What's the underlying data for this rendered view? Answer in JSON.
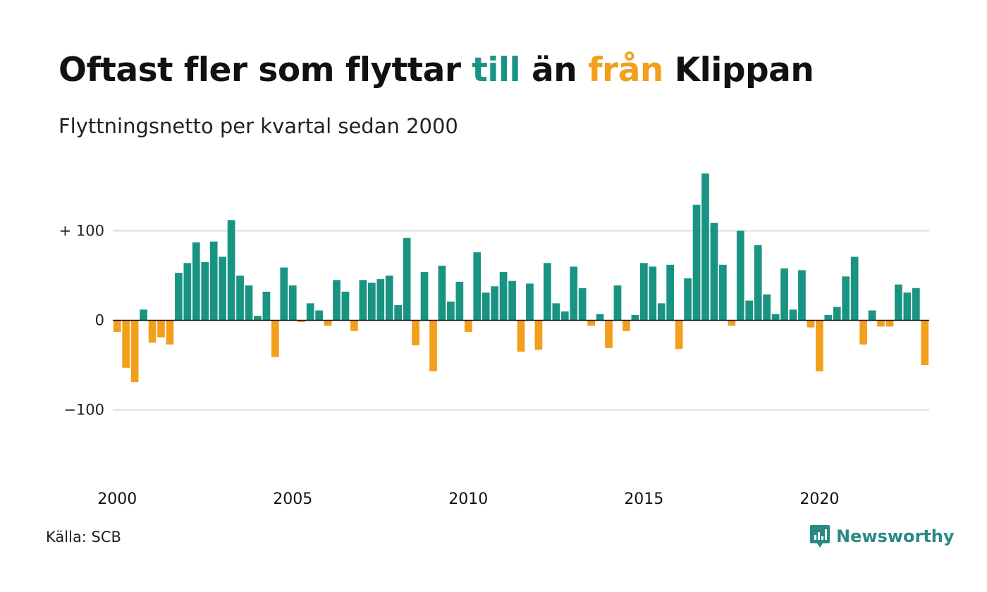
{
  "title": {
    "part1": "Oftast fler som flyttar ",
    "part2": "till",
    "part3": " än ",
    "part4": "från",
    "part5": " Klippan"
  },
  "subtitle": "Flyttningsnetto per kvartal sedan 2000",
  "source": "Källa: SCB",
  "brand": {
    "name": "Newsworthy",
    "icon": "newsworthy-logo-icon"
  },
  "colors": {
    "positive": "#1a9482",
    "negative": "#f29f1c",
    "accent_text_till": "#1a9482",
    "accent_text_fran": "#f29f1c",
    "grid": "#dddddd",
    "brand": "#2a8a82"
  },
  "chart_data": {
    "type": "bar",
    "title": "Oftast fler som flyttar till än från Klippan",
    "subtitle": "Flyttningsnetto per kvartal sedan 2000",
    "xlabel": "",
    "ylabel": "",
    "ylim": [
      -175,
      165
    ],
    "yticks": [
      {
        "value": 100,
        "label": "+ 100"
      },
      {
        "value": 0,
        "label": "0"
      },
      {
        "value": -100,
        "label": "−100"
      }
    ],
    "xticks": [
      "2000",
      "2005",
      "2010",
      "2015",
      "2020"
    ],
    "start_year": 2000,
    "frequency": "quarterly",
    "grid": true,
    "legend": "none",
    "values": [
      -13,
      -53,
      -69,
      12,
      -25,
      -19,
      -27,
      53,
      64,
      87,
      65,
      88,
      71,
      112,
      50,
      39,
      5,
      32,
      -41,
      59,
      39,
      -2,
      19,
      11,
      -6,
      45,
      32,
      -12,
      45,
      42,
      46,
      50,
      17,
      92,
      -28,
      54,
      -57,
      61,
      21,
      43,
      -13,
      76,
      31,
      38,
      54,
      44,
      -35,
      41,
      -33,
      64,
      19,
      10,
      60,
      36,
      -6,
      7,
      -31,
      39,
      -12,
      6,
      64,
      60,
      19,
      62,
      -32,
      47,
      129,
      164,
      109,
      62,
      -6,
      100,
      22,
      84,
      29,
      7,
      58,
      12,
      56,
      -8,
      -57,
      6,
      15,
      49,
      71,
      -27,
      11,
      -7,
      -7,
      40,
      31,
      36,
      -50
    ]
  }
}
